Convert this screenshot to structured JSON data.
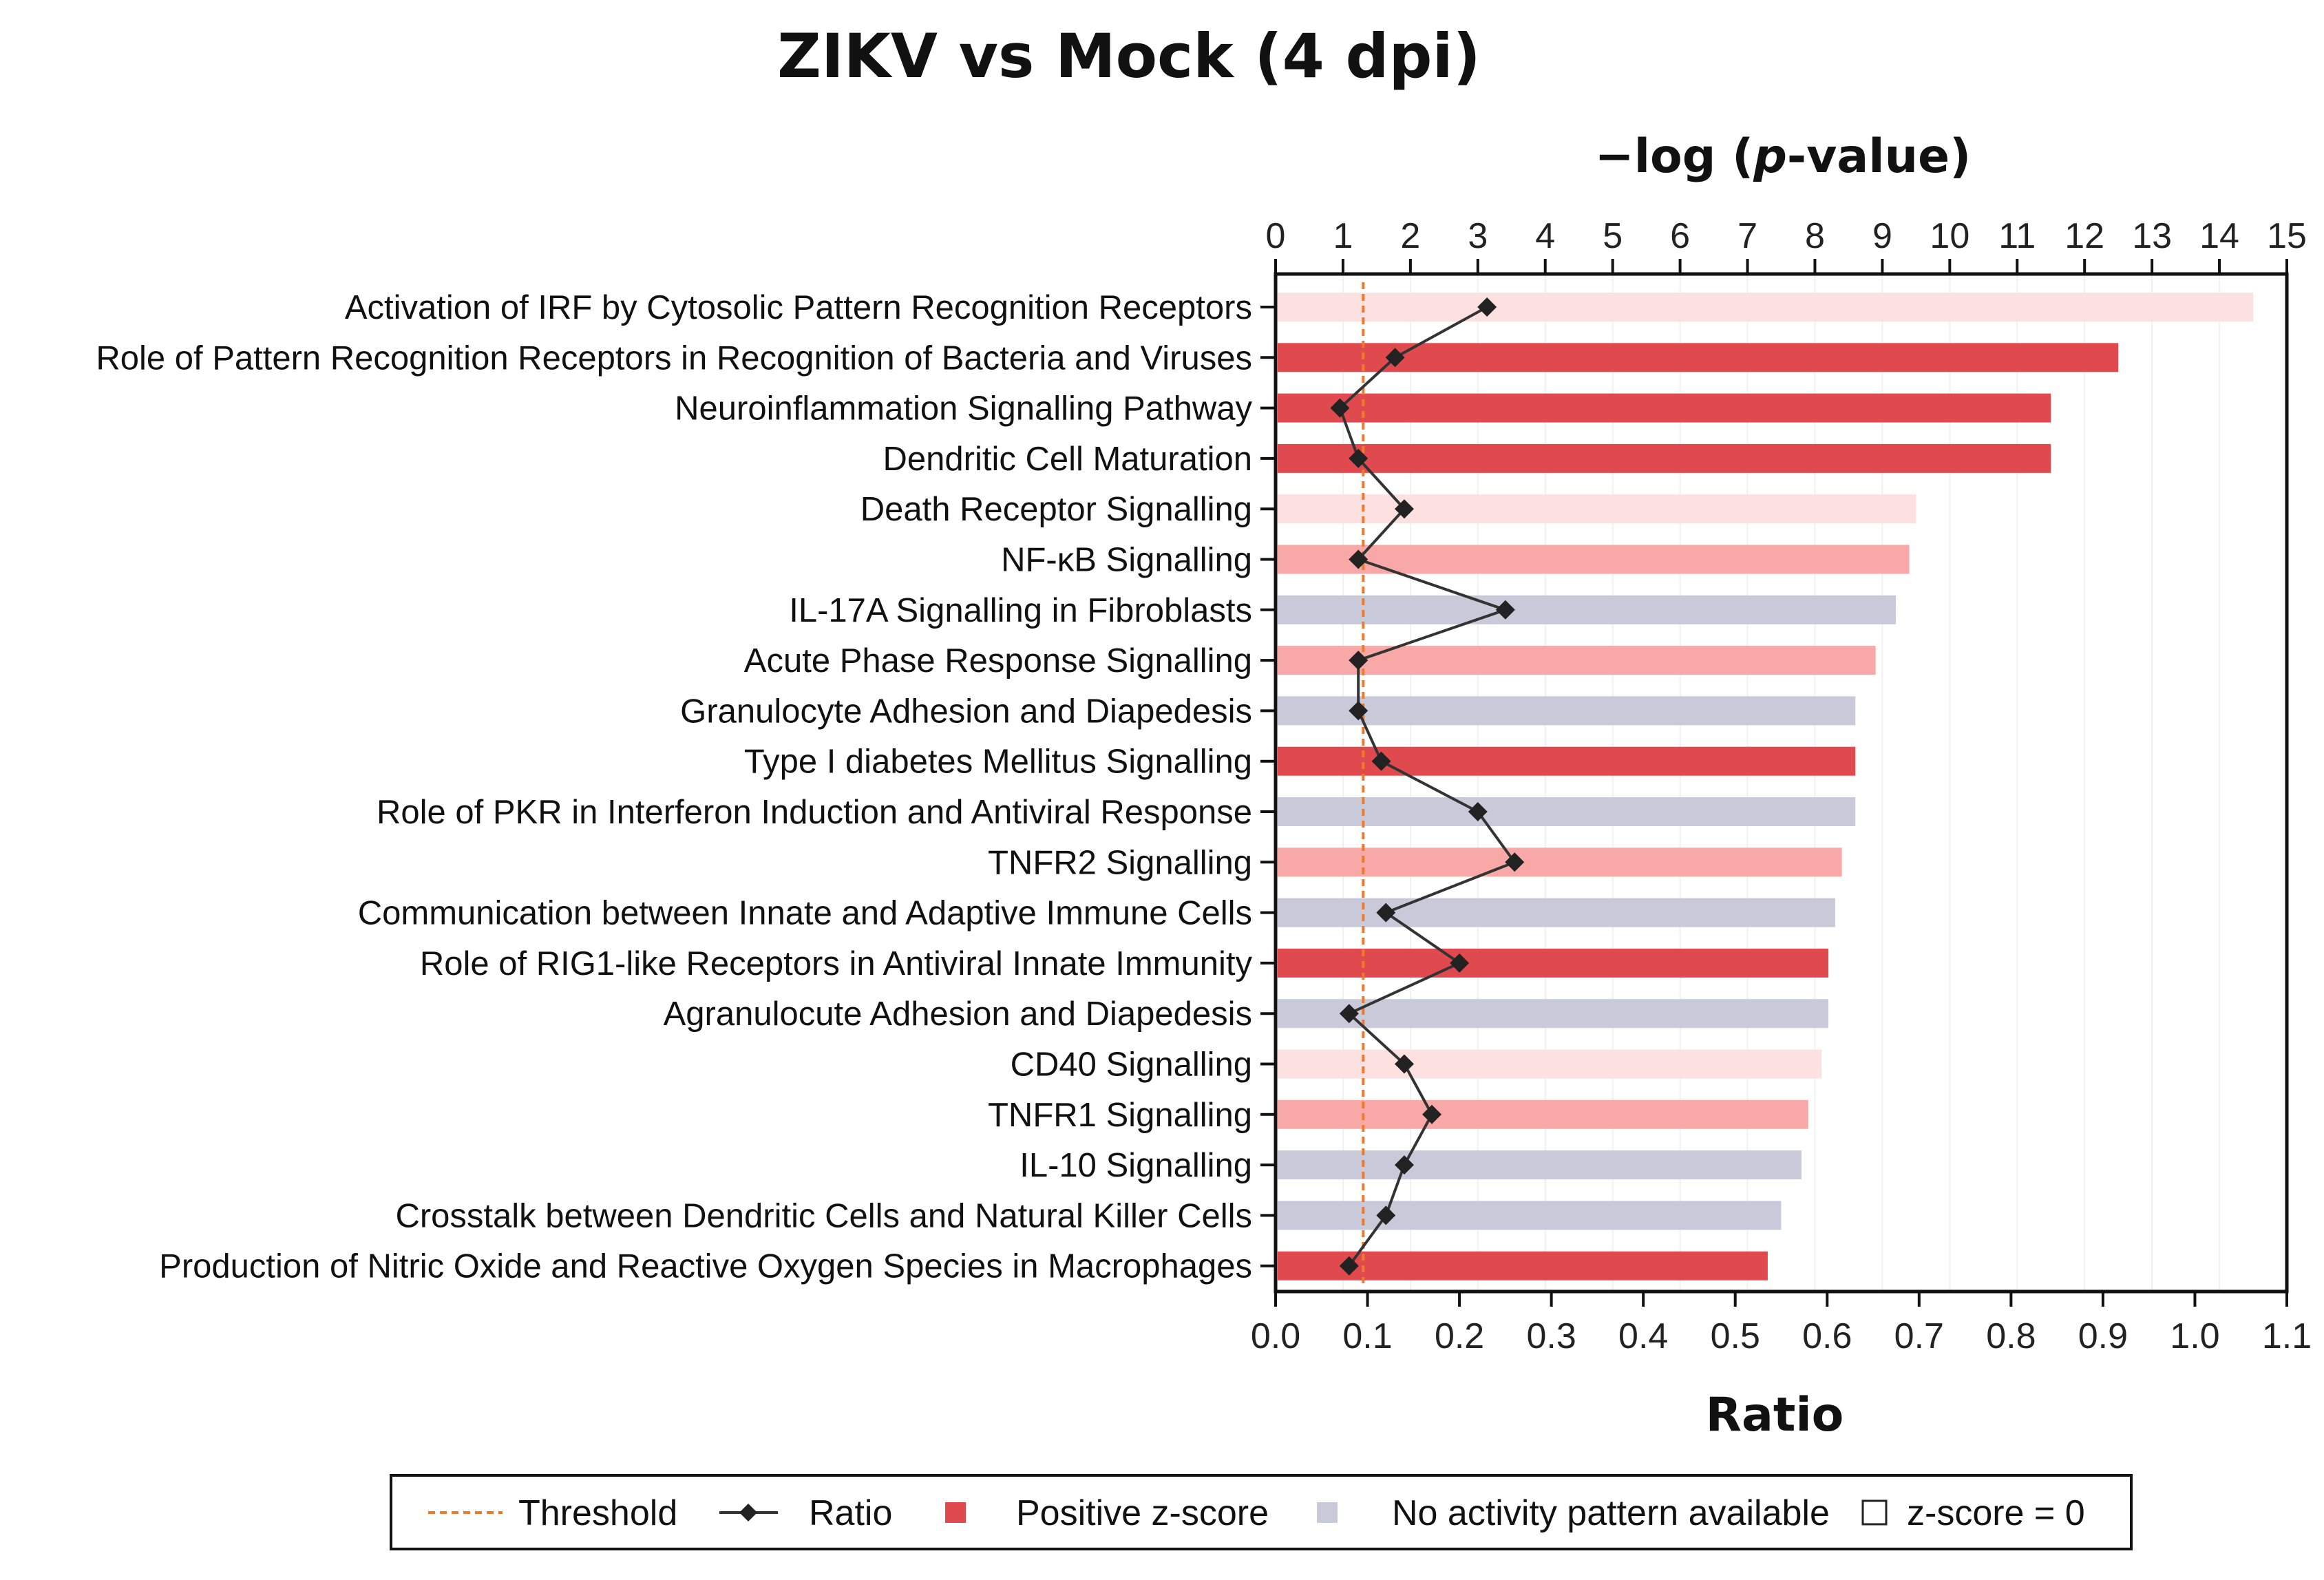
{
  "chart_data": {
    "type": "bar",
    "title": "ZIKV vs Mock (4 dpi)",
    "top_axis": {
      "label_prefix": "−log (",
      "label_italic": "p",
      "label_suffix": "-value)",
      "range": [
        0,
        15
      ],
      "ticks": [
        "0",
        "1",
        "2",
        "3",
        "4",
        "5",
        "6",
        "7",
        "8",
        "9",
        "10",
        "11",
        "12",
        "13",
        "14",
        "15"
      ]
    },
    "bottom_axis": {
      "label": "Ratio",
      "range": [
        0,
        1.1
      ],
      "ticks": [
        "0.0",
        "0.1",
        "0.2",
        "0.3",
        "0.4",
        "0.5",
        "0.6",
        "0.7",
        "0.8",
        "0.9",
        "1.0",
        "1.1"
      ]
    },
    "threshold": 1.3,
    "categories": [
      "Activation of IRF by Cytosolic Pattern Recognition Receptors",
      "Role of Pattern Recognition Receptors in Recognition of Bacteria and Viruses",
      "Neuroinflammation Signalling Pathway",
      "Dendritic Cell Maturation",
      "Death Receptor Signalling",
      "NF-κB Signalling",
      "IL-17A Signalling in Fibroblasts",
      "Acute Phase Response Signalling",
      "Granulocyte Adhesion and Diapedesis",
      "Type I diabetes Mellitus Signalling",
      "Role of PKR in Interferon Induction and Antiviral Response",
      "TNFR2 Signalling",
      "Communication between Innate and Adaptive Immune Cells",
      "Role of RIG1-like Receptors in Antiviral Innate Immunity",
      "Agranulocute Adhesion and Diapedesis",
      "CD40 Signalling",
      "TNFR1 Signalling",
      "IL-10 Signalling",
      "Crosstalk between Dendritic Cells and Natural Killer Cells",
      "Production of Nitric Oxide and Reactive Oxygen Species in Macrophages"
    ],
    "series": [
      {
        "name": "-log (p-value)",
        "values": [
          14.5,
          12.5,
          11.5,
          11.5,
          9.5,
          9.4,
          9.2,
          8.9,
          8.6,
          8.6,
          8.6,
          8.4,
          8.3,
          8.2,
          8.2,
          8.1,
          7.9,
          7.8,
          7.5,
          7.3
        ]
      },
      {
        "name": "Ratio",
        "values": [
          0.23,
          0.13,
          0.07,
          0.09,
          0.14,
          0.09,
          0.25,
          0.09,
          0.09,
          0.115,
          0.22,
          0.26,
          0.12,
          0.2,
          0.08,
          0.14,
          0.17,
          0.14,
          0.12,
          0.08
        ]
      }
    ],
    "bar_category": [
      "zero",
      "positive",
      "positive",
      "positive",
      "zero",
      "light_positive",
      "na",
      "light_positive",
      "na",
      "positive",
      "na",
      "light_positive",
      "na",
      "positive",
      "na",
      "zero",
      "light_positive",
      "na",
      "na",
      "positive"
    ],
    "colors": {
      "positive": "#e04a4f",
      "light_positive": "#f9a8a8",
      "zero": "#fde1e1",
      "na": "#c8c9d9",
      "threshold": "#f07a2a",
      "ratio_line": "#333333",
      "ratio_marker": "#222222"
    },
    "legend": [
      {
        "key": "threshold",
        "label": "Threshold"
      },
      {
        "key": "ratio",
        "label": "Ratio"
      },
      {
        "key": "positive",
        "label": "Positive z-score"
      },
      {
        "key": "na",
        "label": "No activity pattern available"
      },
      {
        "key": "zero",
        "label": "z-score = 0"
      }
    ]
  }
}
